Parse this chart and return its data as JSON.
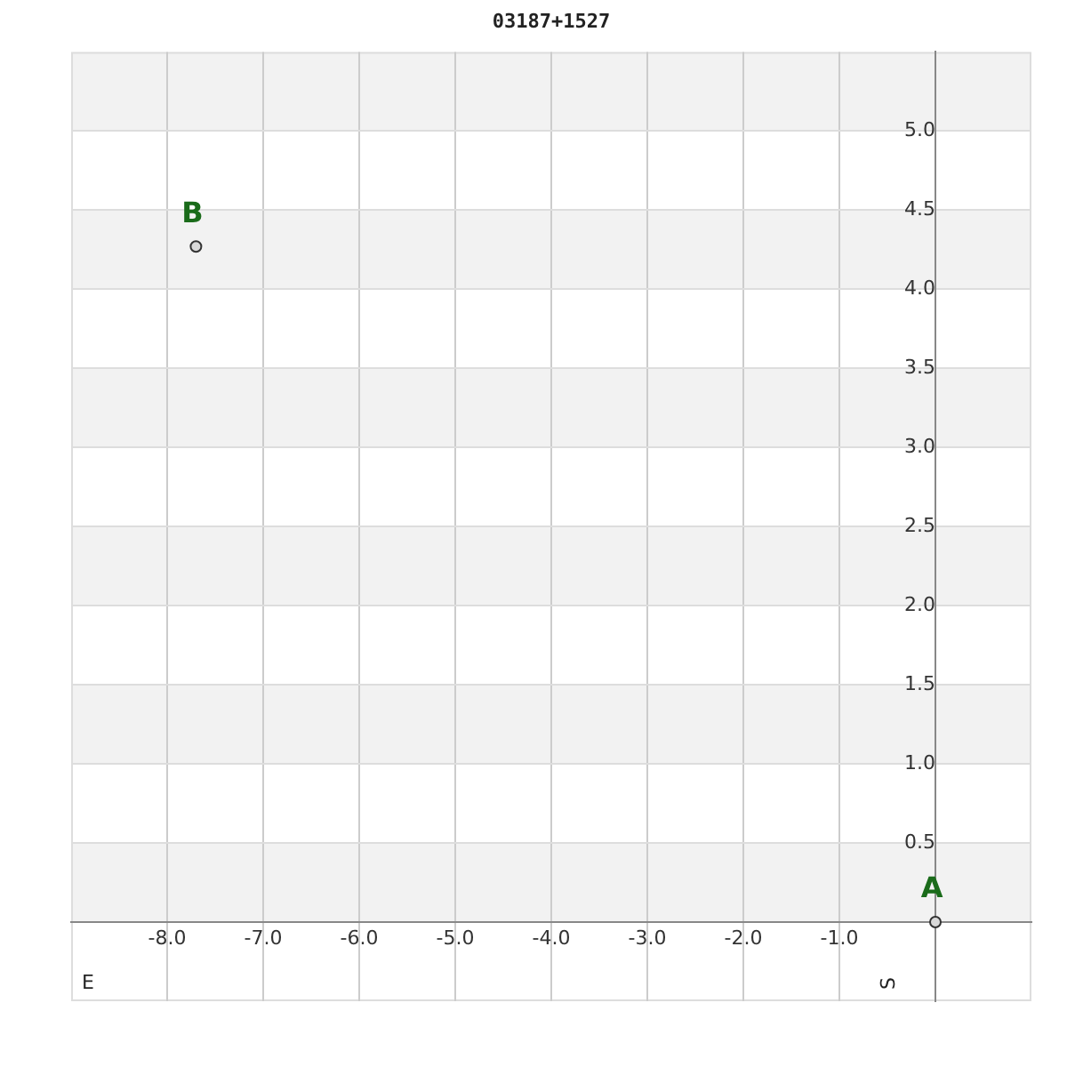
{
  "chart_data": {
    "type": "scatter",
    "title": "03187+1527",
    "series": [
      {
        "color": "#d9d9d9",
        "x": [
          0,
          -7.7
        ],
        "values": [
          0,
          4.27
        ]
      }
    ],
    "xlim": [
      -9,
      1
    ],
    "ylim": [
      -0.5,
      5.5
    ],
    "xticks": [
      {
        "value": -8,
        "label": "-8.0"
      },
      {
        "value": -7,
        "label": "-7.0"
      },
      {
        "value": -6,
        "label": "-6.0"
      },
      {
        "value": -5,
        "label": "-5.0"
      },
      {
        "value": -4,
        "label": "-4.0"
      },
      {
        "value": -3,
        "label": "-3.0"
      },
      {
        "value": -2,
        "label": "-2.0"
      },
      {
        "value": -1,
        "label": "-1.0"
      },
      {
        "value": 0,
        "label": null
      }
    ],
    "yticks": [
      {
        "value": 0,
        "label": null
      },
      {
        "value": 0.5,
        "label": "0.5"
      },
      {
        "value": 1,
        "label": "1.0"
      },
      {
        "value": 1.5,
        "label": "1.5"
      },
      {
        "value": 2,
        "label": "2.0"
      },
      {
        "value": 2.5,
        "label": "2.5"
      },
      {
        "value": 3,
        "label": "3.0"
      },
      {
        "value": 3.5,
        "label": "3.5"
      },
      {
        "value": 4,
        "label": "4.0"
      },
      {
        "value": 4.5,
        "label": "4.5"
      },
      {
        "value": 5,
        "label": "5.0"
      }
    ],
    "bands": [
      {
        "axis": "y",
        "from": 0,
        "to": 0.5,
        "color": "#f2f2f2"
      },
      {
        "axis": "y",
        "from": 1,
        "to": 1.5,
        "color": "#f2f2f2"
      },
      {
        "axis": "y",
        "from": 2,
        "to": 2.5,
        "color": "#f2f2f2"
      },
      {
        "axis": "y",
        "from": 3,
        "to": 3.5,
        "color": "#f2f2f2"
      },
      {
        "axis": "y",
        "from": 4,
        "to": 4.5,
        "color": "#f2f2f2"
      },
      {
        "axis": "y",
        "from": 5,
        "to": 5.5,
        "color": "#f2f2f2"
      }
    ],
    "annotations": [
      {
        "text": "A",
        "x": 0,
        "y": 0
      },
      {
        "text": "B",
        "x": -7.7,
        "y": 4.27
      },
      "E",
      "S"
    ],
    "grid": true,
    "marker": "circle",
    "legend": false
  }
}
